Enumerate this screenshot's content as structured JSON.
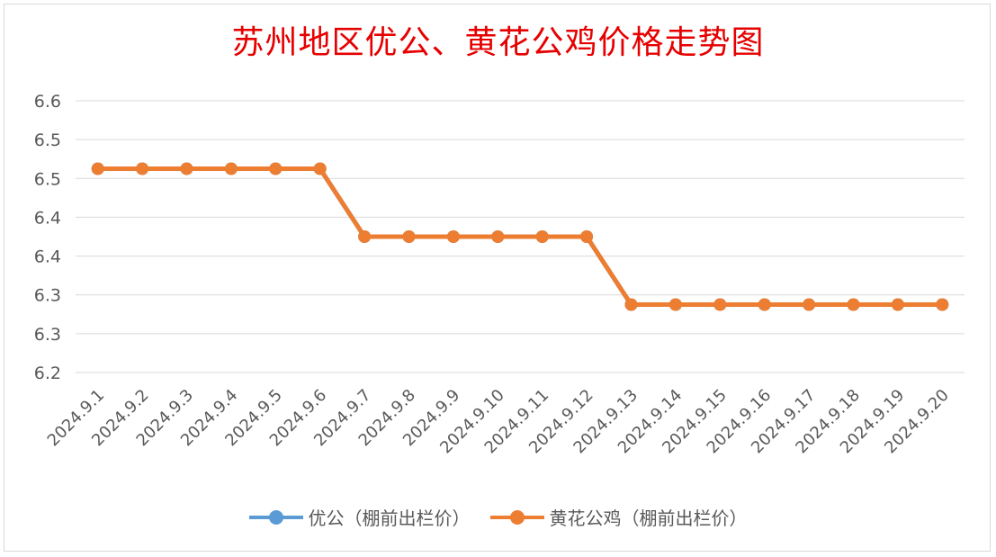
{
  "chart_data": {
    "type": "line",
    "title": "苏州地区优公、黄花公鸡价格走势图",
    "categories": [
      "2024.9.1",
      "2024.9.2",
      "2024.9.3",
      "2024.9.4",
      "2024.9.5",
      "2024.9.6",
      "2024.9.7",
      "2024.9.8",
      "2024.9.9",
      "2024.9.10",
      "2024.9.11",
      "2024.9.12",
      "2024.9.13",
      "2024.9.14",
      "2024.9.15",
      "2024.9.16",
      "2024.9.17",
      "2024.9.18",
      "2024.9.19",
      "2024.9.20"
    ],
    "y_tick_labels": [
      "6.6",
      "6.5",
      "6.5",
      "6.4",
      "6.4",
      "6.3",
      "6.3",
      "6.2"
    ],
    "ylim": [
      6.2,
      6.6
    ],
    "grid": true,
    "legend_position": "bottom",
    "series": [
      {
        "name": "优公（棚前出栏价）",
        "color": "#5b9bd5",
        "values": [
          6.5,
          6.5,
          6.5,
          6.5,
          6.5,
          6.5,
          6.4,
          6.4,
          6.4,
          6.4,
          6.4,
          6.4,
          6.3,
          6.3,
          6.3,
          6.3,
          6.3,
          6.3,
          6.3,
          6.3
        ]
      },
      {
        "name": "黄花公鸡（棚前出栏价）",
        "color": "#ed7d31",
        "values": [
          6.5,
          6.5,
          6.5,
          6.5,
          6.5,
          6.5,
          6.4,
          6.4,
          6.4,
          6.4,
          6.4,
          6.4,
          6.3,
          6.3,
          6.3,
          6.3,
          6.3,
          6.3,
          6.3,
          6.3
        ]
      }
    ]
  }
}
